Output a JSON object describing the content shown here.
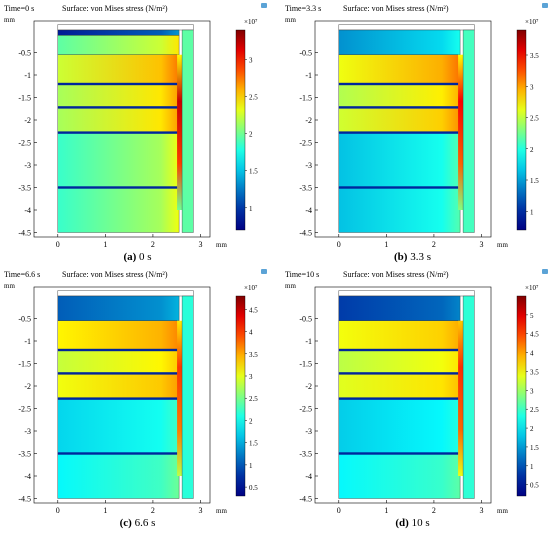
{
  "figure": {
    "panels": [
      {
        "label": "(a)",
        "caption": "0 s",
        "time_text": "Time=0 s",
        "title": "Surface: von Mises stress (N/m²)",
        "exponent": "×10⁷",
        "x_unit": "mm",
        "y_unit": "mm",
        "colorbar_ticks": [
          "3",
          "2.5",
          "2",
          "1.5",
          "1"
        ]
      },
      {
        "label": "(b)",
        "caption": "3.3 s",
        "time_text": "Time=3.3 s",
        "title": "Surface: von Mises stress (N/m²)",
        "exponent": "×10⁷",
        "x_unit": "mm",
        "y_unit": "mm",
        "colorbar_ticks": [
          "3.5",
          "3",
          "2.5",
          "2",
          "1.5",
          "1"
        ]
      },
      {
        "label": "(c)",
        "caption": "6.6 s",
        "time_text": "Time=6.6 s",
        "title": "Surface: von Mises stress (N/m²)",
        "exponent": "×10⁷",
        "x_unit": "mm",
        "y_unit": "mm",
        "colorbar_ticks": [
          "4.5",
          "4",
          "3.5",
          "3",
          "2.5",
          "2",
          "1.5",
          "1",
          "0.5"
        ]
      },
      {
        "label": "(d)",
        "caption": "10 s",
        "time_text": "Time=10 s",
        "title": "Surface: von Mises stress (N/m²)",
        "exponent": "×10⁷",
        "x_unit": "mm",
        "y_unit": "mm",
        "colorbar_ticks": [
          "5",
          "4.5",
          "4",
          "3.5",
          "3",
          "2.5",
          "2",
          "1.5",
          "1",
          "0.5"
        ]
      }
    ]
  },
  "chart_data": [
    {
      "type": "heatmap",
      "title": "Surface: von Mises stress (N/m²)",
      "annotation": "Time=0 s",
      "xlabel": "mm",
      "ylabel": "mm",
      "x_ticks": [
        0,
        1,
        2,
        3
      ],
      "y_ticks": [
        -0.5,
        -1,
        -1.5,
        -2,
        -2.5,
        -3,
        -3.5,
        -4,
        -4.5
      ],
      "xlim": [
        -0.5,
        3.2
      ],
      "ylim": [
        -4.6,
        0.2
      ],
      "colorbar": {
        "range": [
          0.7,
          3.4
        ],
        "ticks": [
          3,
          2.5,
          2,
          1.5,
          1
        ],
        "scale": "×10⁷",
        "colormap": "jet"
      },
      "layers": [
        {
          "y_top": 0,
          "y_bottom": -0.12,
          "value": 1.0
        },
        {
          "y_top": -0.12,
          "y_bottom": -0.55,
          "value": 2.1
        },
        {
          "y_top": -0.55,
          "y_bottom": -1.2,
          "value": 2.4
        },
        {
          "y_top": -1.2,
          "y_bottom": -1.72,
          "value": 2.3
        },
        {
          "y_top": -1.72,
          "y_bottom": -2.28,
          "value": 2.3
        },
        {
          "y_top": -2.28,
          "y_bottom": -3.5,
          "value": 2.0
        },
        {
          "y_top": -3.5,
          "y_bottom": -4.5,
          "value": 2.0
        }
      ],
      "edge_value": 3.2
    },
    {
      "type": "heatmap",
      "title": "Surface: von Mises stress (N/m²)",
      "annotation": "Time=3.3 s",
      "xlabel": "mm",
      "ylabel": "mm",
      "x_ticks": [
        0,
        1,
        2,
        3
      ],
      "y_ticks": [
        -0.5,
        -1,
        -1.5,
        -2,
        -2.5,
        -3,
        -3.5,
        -4,
        -4.5
      ],
      "xlim": [
        -0.5,
        3.2
      ],
      "ylim": [
        -4.6,
        0.2
      ],
      "colorbar": {
        "range": [
          0.7,
          3.9
        ],
        "ticks": [
          3.5,
          3,
          2.5,
          2,
          1.5,
          1
        ],
        "scale": "×10⁷",
        "colormap": "jet"
      },
      "layers": [
        {
          "y_top": 0,
          "y_bottom": -0.55,
          "value": 1.6
        },
        {
          "y_top": -0.55,
          "y_bottom": -1.2,
          "value": 2.8
        },
        {
          "y_top": -1.2,
          "y_bottom": -1.72,
          "value": 2.6
        },
        {
          "y_top": -1.72,
          "y_bottom": -2.28,
          "value": 2.7
        },
        {
          "y_top": -2.28,
          "y_bottom": -3.5,
          "value": 1.8
        },
        {
          "y_top": -3.5,
          "y_bottom": -4.5,
          "value": 1.8
        }
      ],
      "edge_value": 3.5
    },
    {
      "type": "heatmap",
      "title": "Surface: von Mises stress (N/m²)",
      "annotation": "Time=6.6 s",
      "xlabel": "mm",
      "ylabel": "mm",
      "x_ticks": [
        0,
        1,
        2,
        3
      ],
      "y_ticks": [
        -0.5,
        -1,
        -1.5,
        -2,
        -2.5,
        -3,
        -3.5,
        -4,
        -4.5
      ],
      "xlim": [
        -0.5,
        3.2
      ],
      "ylim": [
        -4.6,
        0.2
      ],
      "colorbar": {
        "range": [
          0.3,
          4.8
        ],
        "ticks": [
          4.5,
          4,
          3.5,
          3,
          2.5,
          2,
          1.5,
          1,
          0.5
        ],
        "scale": "×10⁷",
        "colormap": "jet"
      },
      "layers": [
        {
          "y_top": 0,
          "y_bottom": -0.55,
          "value": 1.2
        },
        {
          "y_top": -0.55,
          "y_bottom": -1.2,
          "value": 3.3
        },
        {
          "y_top": -1.2,
          "y_bottom": -1.72,
          "value": 3.0
        },
        {
          "y_top": -1.72,
          "y_bottom": -2.28,
          "value": 3.2
        },
        {
          "y_top": -2.28,
          "y_bottom": -3.5,
          "value": 1.9
        },
        {
          "y_top": -3.5,
          "y_bottom": -4.5,
          "value": 2.1
        }
      ],
      "edge_value": 4.0
    },
    {
      "type": "heatmap",
      "title": "Surface: von Mises stress (N/m²)",
      "annotation": "Time=10 s",
      "xlabel": "mm",
      "ylabel": "mm",
      "x_ticks": [
        0,
        1,
        2,
        3
      ],
      "y_ticks": [
        -0.5,
        -1,
        -1.5,
        -2,
        -2.5,
        -3,
        -3.5,
        -4,
        -4.5
      ],
      "xlim": [
        -0.5,
        3.2
      ],
      "ylim": [
        -4.6,
        0.2
      ],
      "colorbar": {
        "range": [
          0.2,
          5.5
        ],
        "ticks": [
          5,
          4.5,
          4,
          3.5,
          3,
          2.5,
          2,
          1.5,
          1,
          0.5
        ],
        "scale": "×10⁷",
        "colormap": "jet"
      },
      "layers": [
        {
          "y_top": 0,
          "y_bottom": -0.55,
          "value": 1.0
        },
        {
          "y_top": -0.55,
          "y_bottom": -1.2,
          "value": 3.6
        },
        {
          "y_top": -1.2,
          "y_bottom": -1.72,
          "value": 3.3
        },
        {
          "y_top": -1.72,
          "y_bottom": -2.28,
          "value": 3.5
        },
        {
          "y_top": -2.28,
          "y_bottom": -3.5,
          "value": 2.0
        },
        {
          "y_top": -3.5,
          "y_bottom": -4.5,
          "value": 2.3
        }
      ],
      "edge_value": 4.6
    }
  ]
}
